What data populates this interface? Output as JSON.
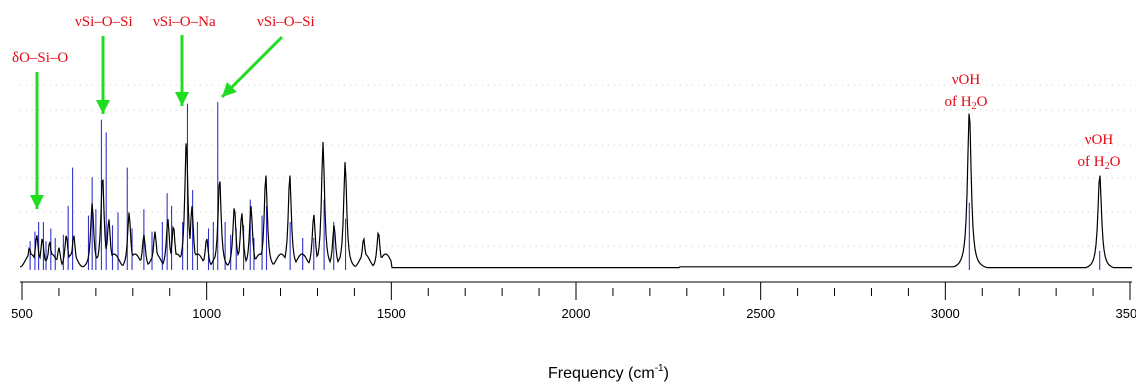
{
  "chart_data": {
    "type": "line",
    "title": "",
    "xlabel": "Frequency (cm",
    "xlabel_sup": "-1",
    "xlabel_end": ")",
    "ylabel": "",
    "xlim": [
      500,
      3500
    ],
    "ylim": [
      0,
      100
    ],
    "tick_labels": [
      "500",
      "1000",
      "1500",
      "2000",
      "2500",
      "3000",
      "3500"
    ],
    "tick_values": [
      500,
      1000,
      1500,
      2000,
      2500,
      3000,
      3500
    ],
    "grid": true,
    "series": [
      {
        "kind": "spectrum-envelope",
        "color": "#000000",
        "peaks": [
          {
            "x": 520,
            "y": 14
          },
          {
            "x": 540,
            "y": 22
          },
          {
            "x": 555,
            "y": 20
          },
          {
            "x": 575,
            "y": 18
          },
          {
            "x": 600,
            "y": 14
          },
          {
            "x": 620,
            "y": 22
          },
          {
            "x": 640,
            "y": 22
          },
          {
            "x": 690,
            "y": 42
          },
          {
            "x": 718,
            "y": 60
          },
          {
            "x": 735,
            "y": 32
          },
          {
            "x": 790,
            "y": 36
          },
          {
            "x": 830,
            "y": 22
          },
          {
            "x": 860,
            "y": 24
          },
          {
            "x": 895,
            "y": 32
          },
          {
            "x": 910,
            "y": 28
          },
          {
            "x": 945,
            "y": 82
          },
          {
            "x": 960,
            "y": 40
          },
          {
            "x": 1000,
            "y": 20
          },
          {
            "x": 1035,
            "y": 58
          },
          {
            "x": 1075,
            "y": 40
          },
          {
            "x": 1095,
            "y": 36
          },
          {
            "x": 1120,
            "y": 40
          },
          {
            "x": 1160,
            "y": 60
          },
          {
            "x": 1225,
            "y": 60
          },
          {
            "x": 1290,
            "y": 35
          },
          {
            "x": 1315,
            "y": 80
          },
          {
            "x": 1345,
            "y": 28
          },
          {
            "x": 1375,
            "y": 68
          },
          {
            "x": 1425,
            "y": 20
          },
          {
            "x": 1465,
            "y": 24
          },
          {
            "x": 3065,
            "y": 100
          },
          {
            "x": 3418,
            "y": 60
          }
        ]
      },
      {
        "kind": "stick-lines",
        "color": "#3333cc",
        "sticks": [
          {
            "x": 522,
            "y": 18
          },
          {
            "x": 535,
            "y": 24
          },
          {
            "x": 545,
            "y": 30
          },
          {
            "x": 558,
            "y": 30
          },
          {
            "x": 565,
            "y": 18
          },
          {
            "x": 578,
            "y": 26
          },
          {
            "x": 590,
            "y": 20
          },
          {
            "x": 612,
            "y": 22
          },
          {
            "x": 625,
            "y": 40
          },
          {
            "x": 637,
            "y": 64
          },
          {
            "x": 680,
            "y": 34
          },
          {
            "x": 690,
            "y": 58
          },
          {
            "x": 700,
            "y": 38
          },
          {
            "x": 715,
            "y": 94
          },
          {
            "x": 728,
            "y": 86
          },
          {
            "x": 745,
            "y": 28
          },
          {
            "x": 760,
            "y": 36
          },
          {
            "x": 785,
            "y": 64
          },
          {
            "x": 798,
            "y": 26
          },
          {
            "x": 830,
            "y": 38
          },
          {
            "x": 852,
            "y": 24
          },
          {
            "x": 880,
            "y": 30
          },
          {
            "x": 893,
            "y": 48
          },
          {
            "x": 905,
            "y": 40
          },
          {
            "x": 935,
            "y": 30
          },
          {
            "x": 948,
            "y": 104
          },
          {
            "x": 962,
            "y": 50
          },
          {
            "x": 975,
            "y": 30
          },
          {
            "x": 1005,
            "y": 26
          },
          {
            "x": 1018,
            "y": 30
          },
          {
            "x": 1030,
            "y": 105
          },
          {
            "x": 1050,
            "y": 30
          },
          {
            "x": 1065,
            "y": 22
          },
          {
            "x": 1080,
            "y": 26
          },
          {
            "x": 1100,
            "y": 28
          },
          {
            "x": 1118,
            "y": 44
          },
          {
            "x": 1128,
            "y": 20
          },
          {
            "x": 1150,
            "y": 34
          },
          {
            "x": 1162,
            "y": 40
          },
          {
            "x": 1226,
            "y": 30
          },
          {
            "x": 1260,
            "y": 20
          },
          {
            "x": 1290,
            "y": 20
          },
          {
            "x": 1318,
            "y": 44
          },
          {
            "x": 1344,
            "y": 30
          },
          {
            "x": 1376,
            "y": 32
          },
          {
            "x": 3065,
            "y": 42
          },
          {
            "x": 3418,
            "y": 12
          }
        ]
      }
    ],
    "annotations": [
      {
        "id": "ann-deltaOSiO",
        "text": "δO–Si–O",
        "x": 540,
        "y": 130,
        "color": "#e30613",
        "arrow": "green"
      },
      {
        "id": "ann-nuSiOSi-1",
        "text": "νSi–O–Si",
        "x": 718,
        "y": 122,
        "color": "#e30613",
        "arrow": "green"
      },
      {
        "id": "ann-nuSiONa",
        "text": "νSi–O–Na",
        "x": 948,
        "y": 114,
        "color": "#e30613",
        "arrow": "green"
      },
      {
        "id": "ann-nuSiOSi-2",
        "text": "νSi–O–Si",
        "x": 1035,
        "y": 108,
        "color": "#e30613",
        "arrow": "green"
      },
      {
        "id": "ann-vOH-1",
        "text": "νOH",
        "sub_line": "of H",
        "sub_digit": "2",
        "sub_tail": "O",
        "x": 3065
      },
      {
        "id": "ann-vOH-2",
        "text": "νOH",
        "sub_line": "of H",
        "sub_digit": "2",
        "sub_tail": "O",
        "x": 3418
      }
    ]
  },
  "colors": {
    "annotation": "#e30613",
    "arrow": "#21dd21",
    "stick": "#3333cc",
    "spectrum": "#000000",
    "grid": "#c8c8c8"
  }
}
